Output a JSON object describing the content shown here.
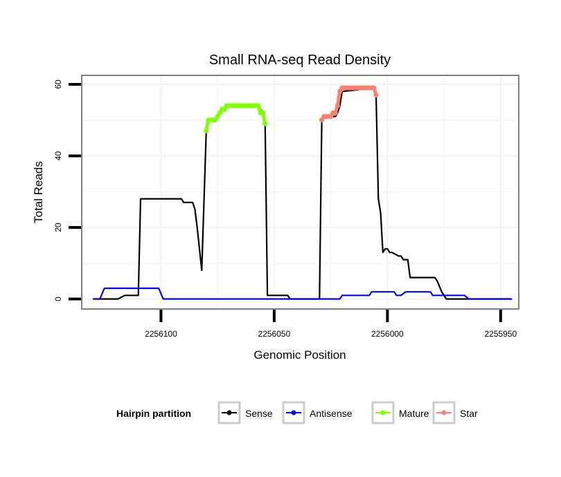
{
  "chart_data": {
    "type": "line",
    "title": "Small RNA-seq Read Density",
    "xlabel": "Genomic Position",
    "ylabel": "Total Reads",
    "x_reversed": true,
    "xlim": [
      2256135,
      2255942
    ],
    "ylim": [
      -2.8,
      62.5
    ],
    "xticks": [
      2256100,
      2256050,
      2256000,
      2255950
    ],
    "xtick_labels": [
      "2256100",
      "2256050",
      "2256000",
      "2255950"
    ],
    "yticks": [
      0,
      20,
      40,
      60
    ],
    "ytick_labels": [
      "0",
      "20",
      "40",
      "60"
    ],
    "grid": true,
    "legend": {
      "title": "Hairpin partition",
      "position": "bottom",
      "entries": [
        {
          "name": "Sense",
          "color": "#000000"
        },
        {
          "name": "Antisense",
          "color": "#0000FF"
        },
        {
          "name": "Mature",
          "color": "#7FFF00"
        },
        {
          "name": "Star",
          "color": "#FA8072"
        }
      ]
    },
    "series": [
      {
        "name": "Sense",
        "color": "#000000",
        "style": "line",
        "x": [
          2256130,
          2256119,
          2256116,
          2256110,
          2256109,
          2256091,
          2256090,
          2256086,
          2256085,
          2256084,
          2256083,
          2256082,
          2256080,
          2256079,
          2256078,
          2256076,
          2256074,
          2256072,
          2256070,
          2256057,
          2256055,
          2256054,
          2256053,
          2256044,
          2256043,
          2256030,
          2256029,
          2256027,
          2256023,
          2256022,
          2256021,
          2256020,
          2256006,
          2256005,
          2256004,
          2256003,
          2256002,
          2256001,
          2256000,
          2255999,
          2255998,
          2255995,
          2255994,
          2255993,
          2255991,
          2255990,
          2255989,
          2255988,
          2255979,
          2255978,
          2255976,
          2255975,
          2255974,
          2255945
        ],
        "y": [
          0,
          0,
          1,
          1,
          28,
          28,
          27,
          27,
          25,
          20,
          14,
          8,
          47,
          50,
          50,
          50,
          52,
          53,
          54,
          54,
          52,
          49,
          1,
          1,
          0,
          0,
          50,
          51,
          51,
          52,
          54,
          58,
          59,
          57,
          28,
          24,
          13,
          14,
          14,
          13,
          13,
          12,
          12,
          11,
          11,
          6,
          6,
          6,
          6,
          5,
          2,
          1,
          0,
          0
        ]
      },
      {
        "name": "Antisense",
        "color": "#0000FF",
        "style": "line",
        "x": [
          2256130,
          2256127,
          2256125,
          2256101,
          2256099,
          2256021,
          2256020,
          2256008,
          2256007,
          2255997,
          2255996,
          2255994,
          2255992,
          2255981,
          2255980,
          2255966,
          2255964,
          2255945
        ],
        "y": [
          0,
          0,
          3,
          3,
          0,
          0,
          1,
          1,
          2,
          2,
          1,
          1,
          2,
          2,
          1,
          1,
          0,
          0
        ]
      },
      {
        "name": "Mature",
        "color": "#7FFF00",
        "style": "points",
        "x": [
          2256080,
          2256079,
          2256078,
          2256077,
          2256076,
          2256075,
          2256074,
          2256073,
          2256072,
          2256071,
          2256070,
          2256069,
          2256068,
          2256067,
          2256066,
          2256065,
          2256064,
          2256063,
          2256062,
          2256061,
          2256060,
          2256059,
          2256058,
          2256057,
          2256056,
          2256055,
          2256054
        ],
        "y": [
          47,
          50,
          50,
          50,
          50,
          51,
          52,
          53,
          53,
          54,
          54,
          54,
          54,
          54,
          54,
          54,
          54,
          54,
          54,
          54,
          54,
          54,
          54,
          54,
          52,
          52,
          49
        ]
      },
      {
        "name": "Star",
        "color": "#FA8072",
        "style": "points",
        "x": [
          2256029,
          2256028,
          2256027,
          2256026,
          2256025,
          2256024,
          2256023,
          2256022,
          2256021,
          2256020,
          2256019,
          2256018,
          2256017,
          2256016,
          2256015,
          2256014,
          2256013,
          2256012,
          2256011,
          2256010,
          2256009,
          2256008,
          2256007,
          2256006,
          2256005
        ],
        "y": [
          50,
          51,
          51,
          51,
          51,
          52,
          52,
          54,
          58,
          59,
          59,
          59,
          59,
          59,
          59,
          59,
          59,
          59,
          59,
          59,
          59,
          59,
          59,
          59,
          57
        ]
      }
    ]
  }
}
